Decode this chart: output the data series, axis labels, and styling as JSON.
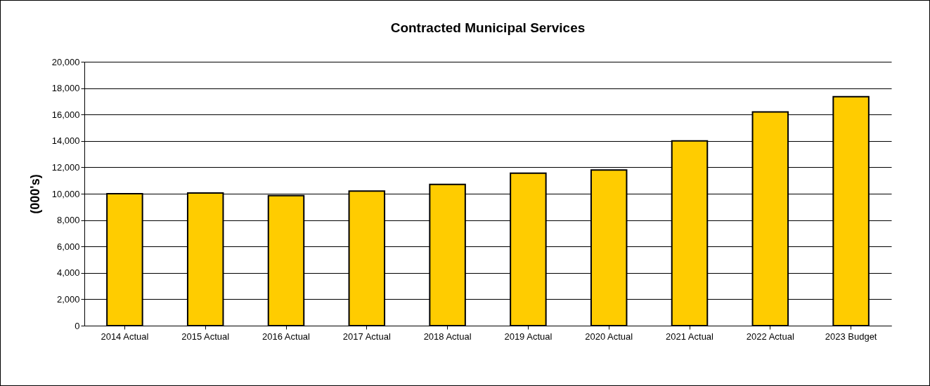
{
  "chart_data": {
    "type": "bar",
    "title": "Contracted Municipal Services",
    "ylabel": "(000's)",
    "categories": [
      "2014 Actual",
      "2015 Actual",
      "2016 Actual",
      "2017 Actual",
      "2018 Actual",
      "2019 Actual",
      "2020 Actual",
      "2021 Actual",
      "2022 Actual",
      "2023 Budget"
    ],
    "values": [
      10000,
      10050,
      9850,
      10200,
      10700,
      11550,
      11800,
      14000,
      16200,
      17350
    ],
    "color": "#ffcc00",
    "ylim": [
      0,
      20000
    ],
    "yticks": [
      {
        "value": 0,
        "label": "0"
      },
      {
        "value": 2000,
        "label": "2,000"
      },
      {
        "value": 4000,
        "label": "4,000"
      },
      {
        "value": 6000,
        "label": "6,000"
      },
      {
        "value": 8000,
        "label": "8,000"
      },
      {
        "value": 10000,
        "label": "10,000"
      },
      {
        "value": 12000,
        "label": "12,000"
      },
      {
        "value": 14000,
        "label": "14,000"
      },
      {
        "value": 16000,
        "label": "16,000"
      },
      {
        "value": 18000,
        "label": "18,000"
      },
      {
        "value": 20000,
        "label": "20,000"
      }
    ],
    "grid": "y"
  }
}
